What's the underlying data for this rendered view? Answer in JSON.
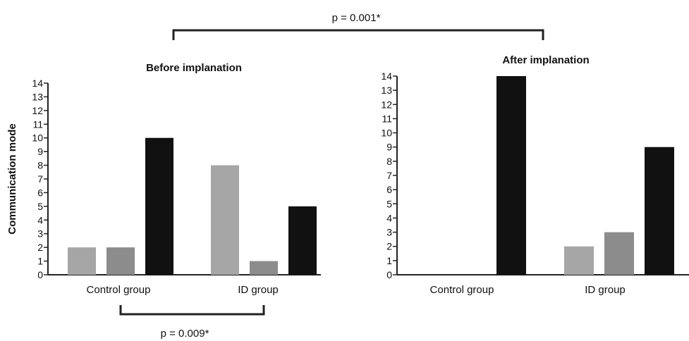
{
  "top_annotation": "p = 0.001*",
  "bottom_annotation": "p = 0.009*",
  "ylabel": "Communication mode",
  "colors": {
    "light_gray": "#a6a6a6",
    "mid_gray": "#8c8c8c",
    "black": "#111111",
    "bracket": "#222222"
  },
  "chart_data": [
    {
      "type": "bar",
      "title": "Before implanation",
      "ylabel": "Communication mode",
      "ylim": [
        0,
        14
      ],
      "yticks": [
        "0",
        "1",
        "2",
        "3",
        "4",
        "5",
        "6",
        "7",
        "8",
        "9",
        "10",
        "11",
        "12",
        "13",
        "14"
      ],
      "categories": [
        "Control group",
        "ID group"
      ],
      "series": [
        {
          "color": "#a6a6a6",
          "values": [
            2,
            8
          ]
        },
        {
          "color": "#8c8c8c",
          "values": [
            2,
            1
          ]
        },
        {
          "color": "#111111",
          "values": [
            10,
            5
          ]
        }
      ],
      "grid": false,
      "legend": "none"
    },
    {
      "type": "bar",
      "title": "After implanation",
      "ylabel": "",
      "ylim": [
        0,
        14
      ],
      "yticks": [
        "0",
        "1",
        "2",
        "3",
        "4",
        "5",
        "6",
        "7",
        "8",
        "9",
        "10",
        "11",
        "12",
        "13",
        "14"
      ],
      "categories": [
        "Control group",
        "ID group"
      ],
      "series": [
        {
          "color": "#a6a6a6",
          "values": [
            0,
            2
          ]
        },
        {
          "color": "#8c8c8c",
          "values": [
            0,
            3
          ]
        },
        {
          "color": "#111111",
          "values": [
            14,
            9
          ]
        }
      ],
      "grid": false,
      "legend": "none"
    }
  ]
}
